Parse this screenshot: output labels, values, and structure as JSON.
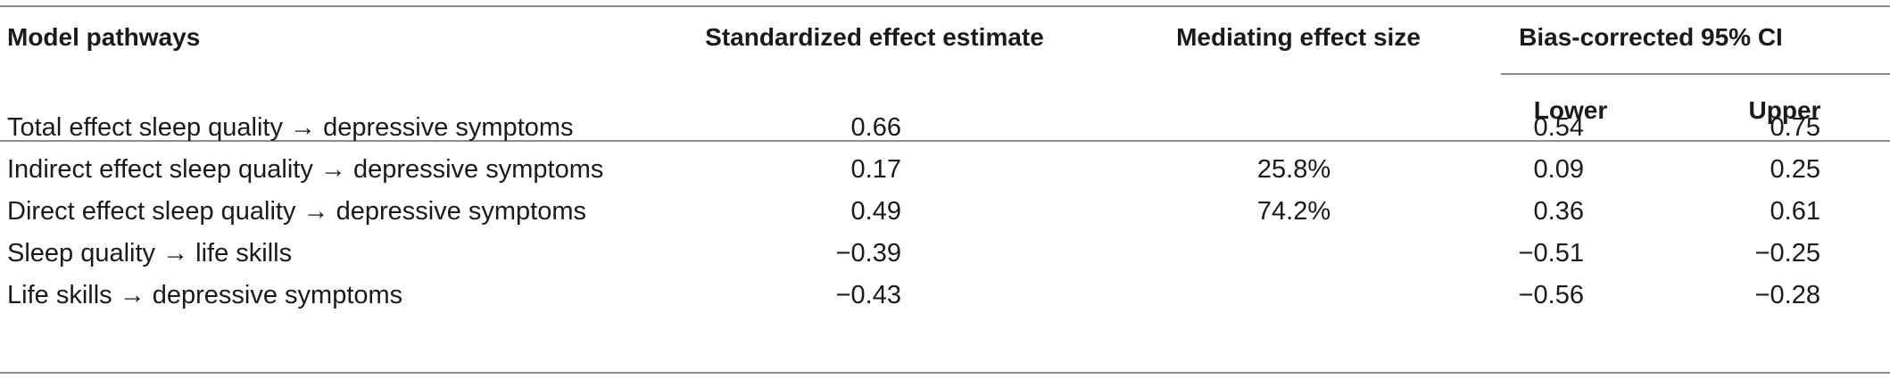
{
  "table": {
    "headers": {
      "pathways": "Model pathways",
      "standardized": "Standardized effect estimate",
      "mediating": "Mediating effect size",
      "ci": "Bias-corrected 95% CI",
      "lower": "Lower",
      "upper": "Upper"
    },
    "rows": [
      {
        "pathway": "Total effect sleep quality → depressive symptoms",
        "standardized": "0.66",
        "mediating": "",
        "lower": "0.54",
        "upper": "0.75"
      },
      {
        "pathway": "Indirect effect sleep quality → depressive symptoms",
        "standardized": "0.17",
        "mediating": "25.8%",
        "lower": "0.09",
        "upper": "0.25"
      },
      {
        "pathway": "Direct effect sleep quality → depressive symptoms",
        "standardized": "0.49",
        "mediating": "74.2%",
        "lower": "0.36",
        "upper": "0.61"
      },
      {
        "pathway": "Sleep quality → life skills",
        "standardized": "−0.39",
        "mediating": "",
        "lower": "−0.51",
        "upper": "−0.25"
      },
      {
        "pathway": "Life skills → depressive symptoms",
        "standardized": "−0.43",
        "mediating": "",
        "lower": "−0.56",
        "upper": "−0.28"
      }
    ]
  }
}
